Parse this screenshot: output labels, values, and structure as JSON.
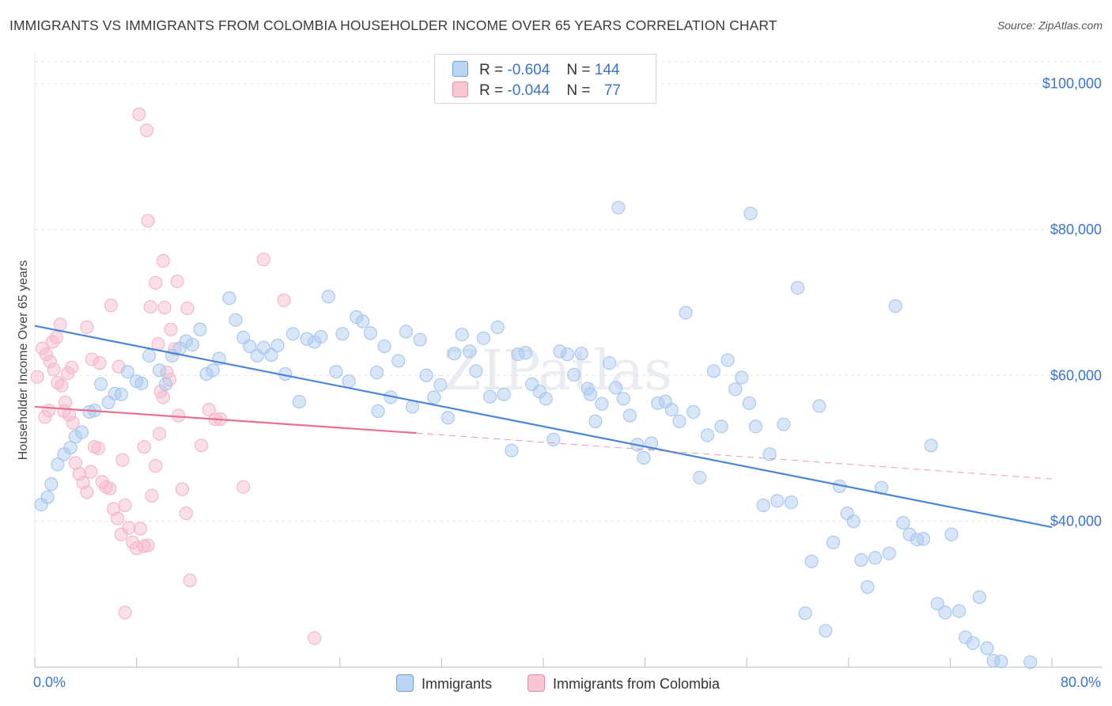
{
  "title": "IMMIGRANTS VS IMMIGRANTS FROM COLOMBIA HOUSEHOLDER INCOME OVER 65 YEARS CORRELATION CHART",
  "source": "Source: ZipAtlas.com",
  "watermark": "ZIPatlas",
  "legend": {
    "rows": [
      {
        "r_label": "R =",
        "r_value": "-0.604",
        "n_label": "N =",
        "n_value": "144",
        "color": "#a9c8f0"
      },
      {
        "r_label": "R =",
        "r_value": "-0.044",
        "n_label": "N =",
        "n_value": "77",
        "color": "#f5b8ca"
      }
    ]
  },
  "bottom_legend": [
    {
      "label": "Immigrants",
      "color": "#a9c8f0"
    },
    {
      "label": "Immigrants from Colombia",
      "color": "#f5b8ca"
    }
  ],
  "chart_data": {
    "type": "scatter",
    "title": "IMMIGRANTS VS IMMIGRANTS FROM COLOMBIA HOUSEHOLDER INCOME OVER 65 YEARS CORRELATION CHART",
    "xlabel": "",
    "ylabel": "Householder Income Over 65 years",
    "xlim": [
      0,
      80
    ],
    "ylim": [
      20000,
      103000
    ],
    "x_tick_labels": [
      "0.0%",
      "80.0%"
    ],
    "y_ticks": [
      40000,
      60000,
      80000,
      100000
    ],
    "y_tick_labels": [
      "$40,000",
      "$60,000",
      "$80,000",
      "$100,000"
    ],
    "grid": true,
    "legend_position": "top-center",
    "series": [
      {
        "name": "Immigrants",
        "color": "#4a86d6",
        "fill": "#a9c8f0",
        "trend": {
          "x0": 0,
          "y0": 66800,
          "x1": 80,
          "y1": 39200
        },
        "points": [
          [
            0.5,
            42300
          ],
          [
            1.0,
            43300
          ],
          [
            1.3,
            45100
          ],
          [
            1.8,
            47800
          ],
          [
            2.3,
            49200
          ],
          [
            2.8,
            50100
          ],
          [
            3.2,
            51600
          ],
          [
            3.7,
            52200
          ],
          [
            4.3,
            55000
          ],
          [
            4.7,
            55200
          ],
          [
            5.2,
            58800
          ],
          [
            5.8,
            56300
          ],
          [
            6.3,
            57500
          ],
          [
            6.8,
            57400
          ],
          [
            7.3,
            60500
          ],
          [
            8.0,
            59200
          ],
          [
            8.4,
            58900
          ],
          [
            9.0,
            62700
          ],
          [
            9.8,
            60700
          ],
          [
            10.3,
            58800
          ],
          [
            10.8,
            62700
          ],
          [
            11.4,
            63700
          ],
          [
            11.9,
            64700
          ],
          [
            12.4,
            64200
          ],
          [
            13.0,
            66300
          ],
          [
            13.5,
            60200
          ],
          [
            14.0,
            60700
          ],
          [
            14.5,
            62300
          ],
          [
            15.3,
            70600
          ],
          [
            15.8,
            67600
          ],
          [
            16.4,
            65200
          ],
          [
            16.9,
            64000
          ],
          [
            17.5,
            62700
          ],
          [
            18.0,
            63800
          ],
          [
            18.6,
            62800
          ],
          [
            19.1,
            64100
          ],
          [
            19.7,
            60200
          ],
          [
            20.3,
            65700
          ],
          [
            20.8,
            56400
          ],
          [
            21.4,
            65000
          ],
          [
            22.0,
            64600
          ],
          [
            22.5,
            65300
          ],
          [
            23.1,
            70800
          ],
          [
            23.7,
            60500
          ],
          [
            24.2,
            65700
          ],
          [
            24.7,
            59200
          ],
          [
            25.3,
            68000
          ],
          [
            25.8,
            67400
          ],
          [
            26.4,
            65800
          ],
          [
            26.9,
            60400
          ],
          [
            27.5,
            64000
          ],
          [
            28.0,
            57000
          ],
          [
            28.6,
            62000
          ],
          [
            29.2,
            66000
          ],
          [
            29.7,
            55700
          ],
          [
            30.3,
            64900
          ],
          [
            30.8,
            60000
          ],
          [
            31.4,
            57000
          ],
          [
            31.9,
            58700
          ],
          [
            32.5,
            54200
          ],
          [
            33.0,
            63000
          ],
          [
            33.6,
            65600
          ],
          [
            34.2,
            63300
          ],
          [
            34.7,
            60600
          ],
          [
            35.3,
            65100
          ],
          [
            35.8,
            57100
          ],
          [
            36.4,
            66600
          ],
          [
            36.9,
            57400
          ],
          [
            37.5,
            49700
          ],
          [
            38.0,
            62900
          ],
          [
            38.6,
            63100
          ],
          [
            39.1,
            58800
          ],
          [
            39.7,
            57800
          ],
          [
            40.2,
            56800
          ],
          [
            40.8,
            51200
          ],
          [
            41.3,
            63300
          ],
          [
            41.9,
            62900
          ],
          [
            42.4,
            60100
          ],
          [
            43.0,
            63000
          ],
          [
            43.5,
            58200
          ],
          [
            44.1,
            53700
          ],
          [
            44.6,
            56100
          ],
          [
            45.2,
            61700
          ],
          [
            45.7,
            58300
          ],
          [
            46.3,
            56800
          ],
          [
            46.8,
            54500
          ],
          [
            47.4,
            50500
          ],
          [
            47.9,
            48700
          ],
          [
            48.5,
            50700
          ],
          [
            49.0,
            56200
          ],
          [
            49.6,
            56400
          ],
          [
            50.1,
            55300
          ],
          [
            50.7,
            53700
          ],
          [
            51.2,
            68600
          ],
          [
            51.8,
            55000
          ],
          [
            52.3,
            46000
          ],
          [
            52.9,
            51800
          ],
          [
            53.4,
            60600
          ],
          [
            54.0,
            53000
          ],
          [
            54.5,
            62100
          ],
          [
            55.1,
            58100
          ],
          [
            55.6,
            59700
          ],
          [
            56.2,
            56200
          ],
          [
            56.7,
            53000
          ],
          [
            57.3,
            42200
          ],
          [
            57.8,
            49200
          ],
          [
            58.4,
            42800
          ],
          [
            58.9,
            53300
          ],
          [
            59.5,
            42600
          ],
          [
            60.0,
            72000
          ],
          [
            60.6,
            27400
          ],
          [
            61.1,
            34500
          ],
          [
            61.7,
            55800
          ],
          [
            62.2,
            25000
          ],
          [
            62.8,
            37100
          ],
          [
            63.3,
            44800
          ],
          [
            63.9,
            41100
          ],
          [
            64.4,
            40000
          ],
          [
            65.0,
            34700
          ],
          [
            65.5,
            31000
          ],
          [
            66.1,
            35000
          ],
          [
            66.6,
            44600
          ],
          [
            67.2,
            35600
          ],
          [
            67.7,
            69500
          ],
          [
            68.3,
            39800
          ],
          [
            68.8,
            38200
          ],
          [
            69.4,
            37500
          ],
          [
            69.9,
            37600
          ],
          [
            70.5,
            50400
          ],
          [
            71.0,
            28700
          ],
          [
            71.6,
            27500
          ],
          [
            72.1,
            38200
          ],
          [
            72.7,
            27700
          ],
          [
            73.2,
            24100
          ],
          [
            73.8,
            23300
          ],
          [
            74.3,
            29600
          ],
          [
            74.9,
            22600
          ],
          [
            75.4,
            20900
          ],
          [
            76.0,
            20800
          ],
          [
            78.3,
            20700
          ],
          [
            45.9,
            83000
          ],
          [
            43.7,
            57400
          ],
          [
            27.0,
            55100
          ],
          [
            56.3,
            82200
          ]
        ]
      },
      {
        "name": "Immigrants from Colombia",
        "color": "#e8708f",
        "fill": "#f5b8ca",
        "trend": {
          "x0": 0,
          "y0": 55700,
          "x1": 30,
          "y1": 52100,
          "dash_to_x": 80,
          "dash_to_y": 45800
        },
        "points": [
          [
            0.2,
            59800
          ],
          [
            0.6,
            63700
          ],
          [
            0.9,
            62900
          ],
          [
            1.2,
            61900
          ],
          [
            1.5,
            60800
          ],
          [
            1.8,
            59000
          ],
          [
            2.1,
            58600
          ],
          [
            2.4,
            56300
          ],
          [
            2.7,
            54600
          ],
          [
            3.0,
            53500
          ],
          [
            0.8,
            54300
          ],
          [
            1.1,
            55200
          ],
          [
            1.4,
            64600
          ],
          [
            1.7,
            65200
          ],
          [
            2.0,
            67000
          ],
          [
            2.3,
            55100
          ],
          [
            2.6,
            60300
          ],
          [
            2.9,
            61100
          ],
          [
            3.2,
            48000
          ],
          [
            3.5,
            46500
          ],
          [
            3.8,
            45300
          ],
          [
            4.1,
            44000
          ],
          [
            4.4,
            46800
          ],
          [
            4.7,
            50200
          ],
          [
            5.0,
            50000
          ],
          [
            5.3,
            45400
          ],
          [
            5.6,
            44700
          ],
          [
            5.9,
            44500
          ],
          [
            6.2,
            41700
          ],
          [
            6.5,
            40400
          ],
          [
            6.8,
            38200
          ],
          [
            7.1,
            42200
          ],
          [
            7.4,
            39100
          ],
          [
            7.7,
            37100
          ],
          [
            8.0,
            36300
          ],
          [
            8.3,
            39000
          ],
          [
            8.6,
            36600
          ],
          [
            8.9,
            36700
          ],
          [
            9.2,
            43500
          ],
          [
            9.5,
            47600
          ],
          [
            9.8,
            52000
          ],
          [
            10.1,
            57000
          ],
          [
            10.4,
            60400
          ],
          [
            10.7,
            66300
          ],
          [
            11.0,
            63600
          ],
          [
            11.3,
            54500
          ],
          [
            11.6,
            44400
          ],
          [
            11.9,
            41100
          ],
          [
            12.2,
            31900
          ],
          [
            8.2,
            95800
          ],
          [
            8.8,
            93600
          ],
          [
            8.9,
            81200
          ],
          [
            10.1,
            75700
          ],
          [
            9.5,
            72700
          ],
          [
            9.1,
            69400
          ],
          [
            10.2,
            69300
          ],
          [
            12.0,
            69200
          ],
          [
            13.7,
            55300
          ],
          [
            14.2,
            54000
          ],
          [
            13.1,
            50400
          ],
          [
            14.6,
            54000
          ],
          [
            16.4,
            44700
          ],
          [
            18.0,
            75900
          ],
          [
            19.6,
            70300
          ],
          [
            22.0,
            24000
          ],
          [
            6.9,
            48400
          ],
          [
            7.1,
            27500
          ],
          [
            8.6,
            50200
          ],
          [
            9.7,
            64300
          ],
          [
            9.9,
            57800
          ],
          [
            10.6,
            59400
          ],
          [
            11.2,
            72900
          ],
          [
            6.0,
            69600
          ],
          [
            4.5,
            62200
          ],
          [
            5.1,
            61700
          ],
          [
            6.6,
            61200
          ],
          [
            4.1,
            66600
          ]
        ]
      }
    ]
  }
}
